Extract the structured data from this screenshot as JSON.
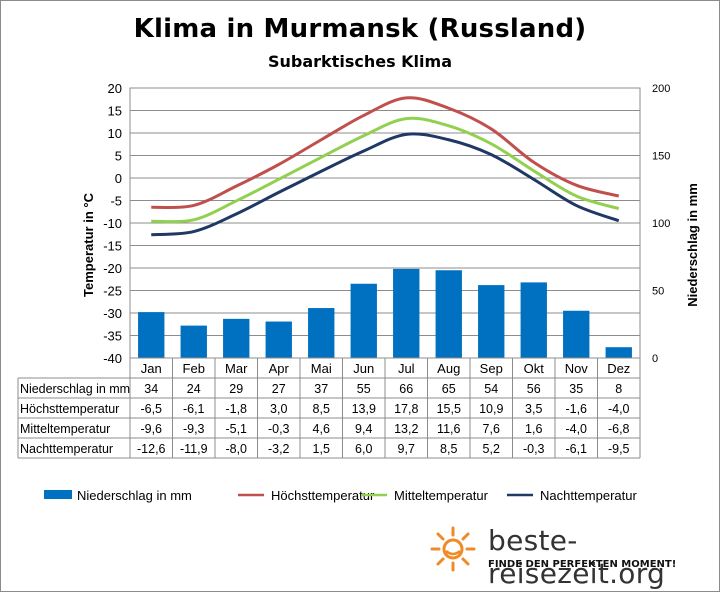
{
  "title": "Klima in Murmansk (Russland)",
  "subtitle": "Subarktisches Klima",
  "brand": {
    "name": "beste-reisezeit.org",
    "tagline": "FINDE DEN PERFEKTEN MOMENT!"
  },
  "chart_data": {
    "type": "bar",
    "categories": [
      "Jan",
      "Feb",
      "Mar",
      "Apr",
      "Mai",
      "Jun",
      "Jul",
      "Aug",
      "Sep",
      "Okt",
      "Nov",
      "Dez"
    ],
    "ylabel_left": "Temperatur in °C",
    "ylabel_right": "Niederschlag in mm",
    "ylim_left": [
      -40,
      20
    ],
    "yticks_left": [
      "20",
      "15",
      "10",
      "5",
      "0",
      "-5",
      "-10",
      "-15",
      "-20",
      "-25",
      "-30",
      "-35",
      "-40"
    ],
    "ylim_right": [
      0,
      200
    ],
    "yticks_right": [
      "200",
      "150",
      "100",
      "50",
      "0"
    ],
    "grid": true,
    "legend_position": "bottom",
    "series": [
      {
        "name": "Niederschlag in mm",
        "type": "bar",
        "axis": "right",
        "color": "#0070c0",
        "values": [
          34,
          24,
          29,
          27,
          37,
          55,
          66,
          65,
          54,
          56,
          35,
          8
        ],
        "labels": [
          "34",
          "24",
          "29",
          "27",
          "37",
          "55",
          "66",
          "65",
          "54",
          "56",
          "35",
          "8"
        ]
      },
      {
        "name": "Höchsttemperatur",
        "type": "line",
        "axis": "left",
        "color": "#c0504d",
        "values": [
          -6.5,
          -6.1,
          -1.8,
          3.0,
          8.5,
          13.9,
          17.8,
          15.5,
          10.9,
          3.5,
          -1.6,
          -4.0
        ],
        "labels": [
          "-6,5",
          "-6,1",
          "-1,8",
          "3,0",
          "8,5",
          "13,9",
          "17,8",
          "15,5",
          "10,9",
          "3,5",
          "-1,6",
          "-4,0"
        ]
      },
      {
        "name": "Mitteltemperatur",
        "type": "line",
        "axis": "left",
        "color": "#92d050",
        "values": [
          -9.6,
          -9.3,
          -5.1,
          -0.3,
          4.6,
          9.4,
          13.2,
          11.6,
          7.6,
          1.6,
          -4.0,
          -6.8
        ],
        "labels": [
          "-9,6",
          "-9,3",
          "-5,1",
          "-0,3",
          "4,6",
          "9,4",
          "13,2",
          "11,6",
          "7,6",
          "1,6",
          "-4,0",
          "-6,8"
        ]
      },
      {
        "name": "Nachttemperatur",
        "type": "line",
        "axis": "left",
        "color": "#1f3864",
        "values": [
          -12.6,
          -11.9,
          -8.0,
          -3.2,
          1.5,
          6.0,
          9.7,
          8.5,
          5.2,
          -0.3,
          -6.1,
          -9.5
        ],
        "labels": [
          "-12,6",
          "-11,9",
          "-8,0",
          "-3,2",
          "1,5",
          "6,0",
          "9,7",
          "8,5",
          "5,2",
          "-0,3",
          "-6,1",
          "-9,5"
        ]
      }
    ]
  }
}
